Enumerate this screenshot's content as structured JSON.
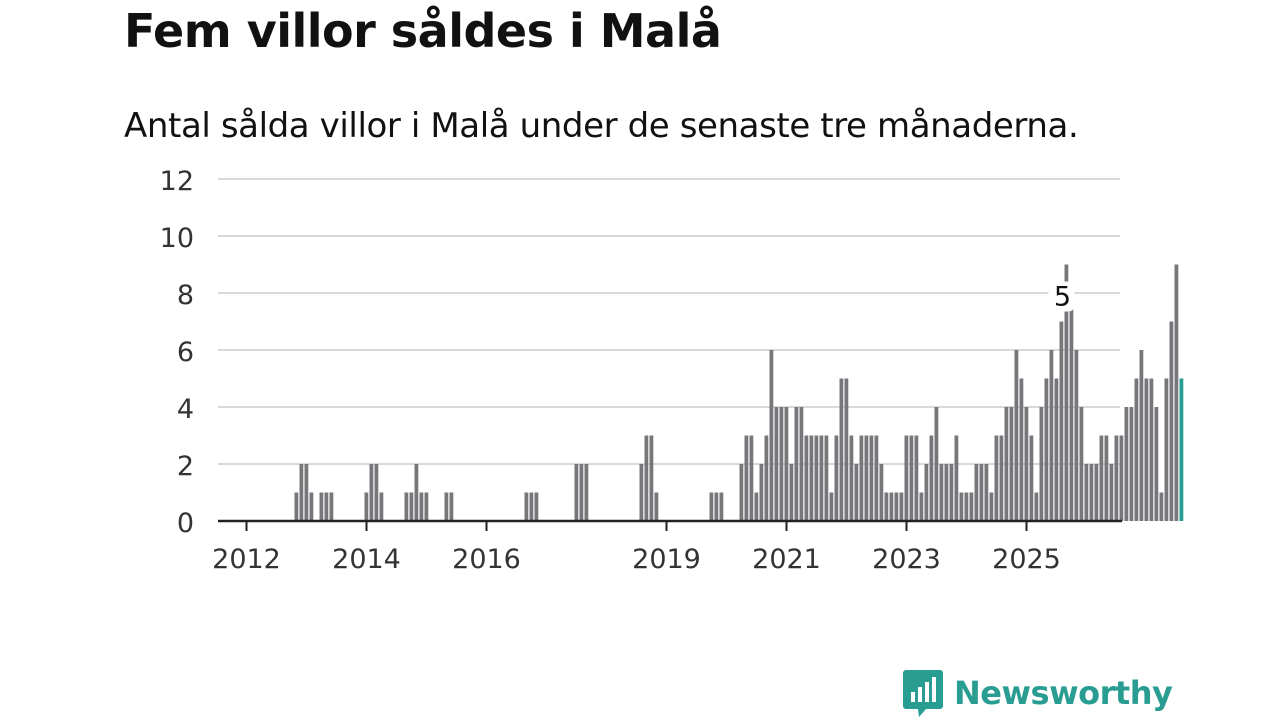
{
  "title": "Fem villor såldes i Malå",
  "subtitle": "Antal sålda villor i Malå under de senaste tre månaderna.",
  "brand": {
    "name": "Newsworthy",
    "icon": "newsworthy-logo-icon",
    "color": "#2a9d93"
  },
  "chart_data": {
    "type": "bar",
    "title": "Fem villor såldes i Malå",
    "subtitle": "Antal sålda villor i Malå under de senaste tre månaderna.",
    "xlabel": "",
    "ylabel": "",
    "ylim": [
      0,
      12
    ],
    "yticks": [
      0,
      2,
      4,
      6,
      8,
      10,
      12
    ],
    "xticks": [
      {
        "label": "2012",
        "value": "2012-01"
      },
      {
        "label": "2014",
        "value": "2014-01"
      },
      {
        "label": "2016",
        "value": "2016-01"
      },
      {
        "label": "2019",
        "value": "2019-01"
      },
      {
        "label": "2021",
        "value": "2021-01"
      },
      {
        "label": "2023",
        "value": "2023-01"
      },
      {
        "label": "2025",
        "value": "2025-01"
      }
    ],
    "grid": true,
    "bar_color": "#77767b",
    "highlight_color": "#2a9d93",
    "annotation": {
      "label": "5",
      "month": "2025-08"
    },
    "start_month": "2011-08",
    "values": [
      0,
      0,
      0,
      0,
      0,
      0,
      0,
      0,
      0,
      0,
      0,
      0,
      0,
      0,
      0,
      1,
      2,
      2,
      1,
      0,
      1,
      1,
      1,
      0,
      0,
      0,
      0,
      0,
      0,
      1,
      2,
      2,
      1,
      0,
      0,
      0,
      0,
      1,
      1,
      2,
      1,
      1,
      0,
      0,
      0,
      1,
      1,
      0,
      0,
      0,
      0,
      0,
      0,
      0,
      0,
      0,
      0,
      0,
      0,
      0,
      0,
      1,
      1,
      1,
      0,
      0,
      0,
      0,
      0,
      0,
      0,
      2,
      2,
      2,
      0,
      0,
      0,
      0,
      0,
      0,
      0,
      0,
      0,
      0,
      2,
      3,
      3,
      1,
      0,
      0,
      0,
      0,
      0,
      0,
      0,
      0,
      0,
      0,
      1,
      1,
      1,
      0,
      0,
      0,
      2,
      3,
      3,
      1,
      2,
      3,
      6,
      4,
      4,
      4,
      2,
      4,
      4,
      3,
      3,
      3,
      3,
      3,
      1,
      3,
      5,
      5,
      3,
      2,
      3,
      3,
      3,
      3,
      2,
      1,
      1,
      1,
      1,
      3,
      3,
      3,
      1,
      2,
      3,
      4,
      2,
      2,
      2,
      3,
      1,
      1,
      1,
      2,
      2,
      2,
      1,
      3,
      3,
      4,
      4,
      6,
      5,
      4,
      3,
      1,
      4,
      5,
      6,
      5,
      7,
      9,
      8,
      6,
      4,
      2,
      2,
      2,
      3,
      3,
      2,
      3,
      3,
      4,
      4,
      5,
      6,
      5,
      5,
      4,
      1,
      5,
      7,
      9,
      5
    ]
  }
}
